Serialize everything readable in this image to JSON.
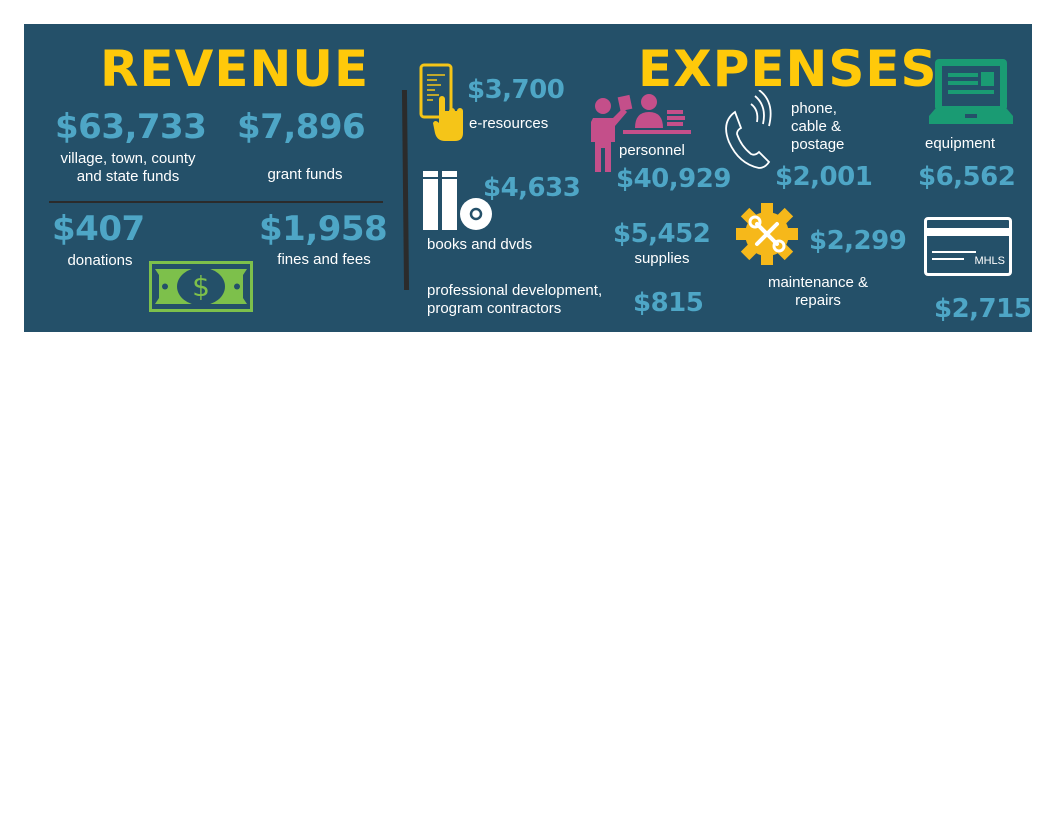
{
  "revenue": {
    "title": "REVENUE",
    "items": [
      {
        "amount": "$63,733",
        "label_line1": "village, town, county",
        "label_line2": "and state funds"
      },
      {
        "amount": "$7,896",
        "label": "grant funds"
      },
      {
        "amount": "$407",
        "label": "donations"
      },
      {
        "amount": "$1,958",
        "label": "fines and fees"
      }
    ],
    "money_icon_symbol": "$"
  },
  "expenses": {
    "title": "EXPENSES",
    "eresources": {
      "amount": "$3,700",
      "label": "e-resources"
    },
    "books": {
      "amount": "$4,633",
      "label": "books and dvds"
    },
    "professional": {
      "amount": "$815",
      "label_line1": "professional development,",
      "label_line2": "program contractors"
    },
    "personnel": {
      "amount": "$40,929",
      "label": "personnel"
    },
    "supplies": {
      "amount": "$5,452",
      "label": "supplies"
    },
    "phone": {
      "amount": "$2,001",
      "label_line1": "phone,",
      "label_line2": "cable &",
      "label_line3": "postage"
    },
    "equipment": {
      "amount": "$6,562",
      "label": "equipment"
    },
    "maintenance": {
      "amount": "$2,299",
      "label_line1": "maintenance &",
      "label_line2": "repairs"
    },
    "mhls": {
      "amount": "$2,715",
      "card_text": "MHLS"
    }
  },
  "colors": {
    "background": "#245069",
    "title": "#ffc90a",
    "amount": "#4ea6c6",
    "personnel_icon": "#c44f8a",
    "equipment_icon": "#1a9b73",
    "money_icon": "#7dc04b",
    "gear_icon": "#f6b81a"
  }
}
